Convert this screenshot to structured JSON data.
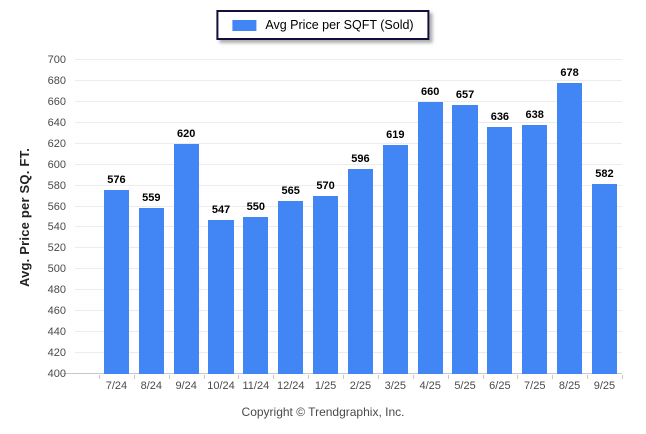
{
  "legend": {
    "label": "Avg Price per SQFT (Sold)",
    "swatch_color": "#4285f4"
  },
  "footer": {
    "copyright": "Copyright © Trendgraphix, Inc."
  },
  "chart_data": {
    "type": "bar",
    "title": "",
    "categories": [
      "7/24",
      "8/24",
      "9/24",
      "10/24",
      "11/24",
      "12/24",
      "1/25",
      "2/25",
      "3/25",
      "4/25",
      "5/25",
      "6/25",
      "7/25",
      "8/25",
      "9/25"
    ],
    "series": [
      {
        "name": "Avg Price per SQFT (Sold)",
        "color": "#4285f4",
        "values": [
          576,
          559,
          620,
          547,
          550,
          565,
          570,
          596,
          619,
          660,
          657,
          636,
          638,
          678,
          582
        ]
      }
    ],
    "xlabel": "",
    "ylabel": "Avg. Price per SQ. FT.",
    "ylim": [
      400,
      700
    ],
    "ytick_step": 20,
    "grid": "horizontal",
    "legend_position": "top-center",
    "value_labels": true
  }
}
